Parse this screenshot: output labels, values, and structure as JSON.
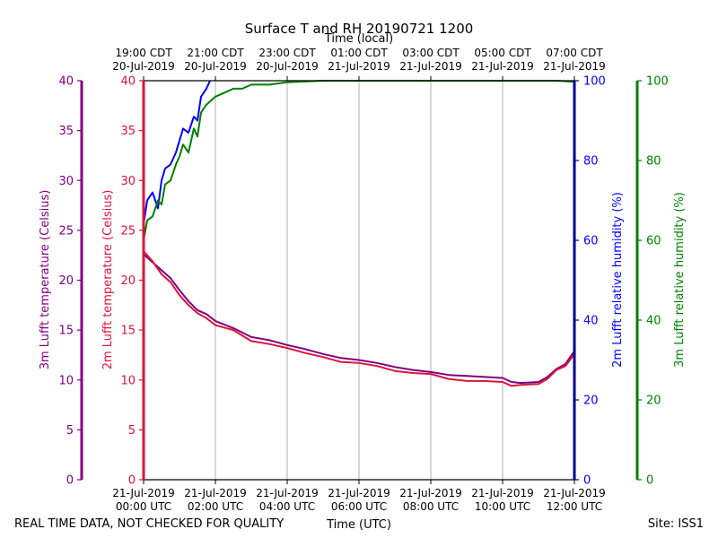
{
  "chart_data": {
    "type": "line",
    "title": "Surface T and RH 20190721 1200",
    "top_axis_title": "Time (local)",
    "top_ticks": [
      {
        "l1": "19:00 CDT",
        "l2": "20-Jul-2019",
        "x": 0
      },
      {
        "l1": "21:00 CDT",
        "l2": "20-Jul-2019",
        "x": 2
      },
      {
        "l1": "23:00 CDT",
        "l2": "20-Jul-2019",
        "x": 4
      },
      {
        "l1": "01:00 CDT",
        "l2": "21-Jul-2019",
        "x": 6
      },
      {
        "l1": "03:00 CDT",
        "l2": "21-Jul-2019",
        "x": 8
      },
      {
        "l1": "05:00 CDT",
        "l2": "21-Jul-2019",
        "x": 10
      },
      {
        "l1": "07:00 CDT",
        "l2": "21-Jul-2019",
        "x": 12
      }
    ],
    "bottom_axis_title": "Time (UTC)",
    "bottom_ticks": [
      {
        "l1": "21-Jul-2019",
        "l2": "00:00 UTC",
        "x": 0
      },
      {
        "l1": "21-Jul-2019",
        "l2": "02:00 UTC",
        "x": 2
      },
      {
        "l1": "21-Jul-2019",
        "l2": "04:00 UTC",
        "x": 4
      },
      {
        "l1": "21-Jul-2019",
        "l2": "06:00 UTC",
        "x": 6
      },
      {
        "l1": "21-Jul-2019",
        "l2": "08:00 UTC",
        "x": 8
      },
      {
        "l1": "21-Jul-2019",
        "l2": "10:00 UTC",
        "x": 10
      },
      {
        "l1": "21-Jul-2019",
        "l2": "12:00 UTC",
        "x": 12
      }
    ],
    "x_range_hours_utc": [
      0,
      12
    ],
    "grid": "vertical",
    "axes": {
      "left_outer": {
        "label": "3m Lufft temperature (Celsius)",
        "color": "#800080",
        "range": [
          0,
          40
        ],
        "ticks": [
          "0",
          "5",
          "10",
          "15",
          "20",
          "25",
          "30",
          "35",
          "40"
        ]
      },
      "left_inner": {
        "label": "2m Lufft temperature (Celsius)",
        "color": "#dc143c",
        "range": [
          0,
          40
        ],
        "ticks": [
          "0",
          "5",
          "10",
          "15",
          "20",
          "25",
          "30",
          "35",
          "40"
        ]
      },
      "right_inner": {
        "label": "2m Lufft relative humidity (%)",
        "color": "#0000ff",
        "axis_color": "#00008b",
        "range": [
          0,
          100
        ],
        "ticks": [
          "0",
          "20",
          "40",
          "60",
          "80",
          "100"
        ]
      },
      "right_outer": {
        "label": "3m Lufft relative humidity (%)",
        "color": "#008000",
        "range": [
          0,
          100
        ],
        "ticks": [
          "0",
          "20",
          "40",
          "60",
          "80",
          "100"
        ]
      }
    },
    "series": [
      {
        "name": "3m Lufft temperature",
        "axis": "left_outer",
        "color": "#800080",
        "x": [
          0,
          0.25,
          0.5,
          0.75,
          1,
          1.25,
          1.5,
          1.75,
          2,
          2.5,
          3,
          3.5,
          4,
          4.5,
          5,
          5.5,
          6,
          6.5,
          7,
          7.5,
          8,
          8.5,
          9,
          9.5,
          10,
          10.25,
          10.5,
          11,
          11.25,
          11.5,
          11.75,
          12
        ],
        "y": [
          22.6,
          21.8,
          21.0,
          20.2,
          19.0,
          17.9,
          17.0,
          16.6,
          15.9,
          15.2,
          14.3,
          14.0,
          13.5,
          13.1,
          12.6,
          12.2,
          12.0,
          11.7,
          11.3,
          11.0,
          10.8,
          10.5,
          10.4,
          10.3,
          10.2,
          9.8,
          9.7,
          9.8,
          10.3,
          11.1,
          11.6,
          12.9
        ]
      },
      {
        "name": "2m Lufft temperature",
        "axis": "left_inner",
        "color": "#dc143c",
        "x": [
          0,
          0.25,
          0.5,
          0.75,
          1,
          1.25,
          1.5,
          1.75,
          2,
          2.5,
          3,
          3.5,
          4,
          4.5,
          5,
          5.5,
          6,
          6.5,
          7,
          7.5,
          8,
          8.5,
          9,
          9.5,
          10,
          10.25,
          10.5,
          11,
          11.25,
          11.5,
          11.75,
          12
        ],
        "y": [
          22.9,
          21.9,
          20.6,
          19.8,
          18.5,
          17.5,
          16.7,
          16.2,
          15.5,
          15.0,
          13.9,
          13.6,
          13.2,
          12.7,
          12.3,
          11.8,
          11.7,
          11.4,
          10.9,
          10.7,
          10.6,
          10.1,
          9.9,
          9.9,
          9.8,
          9.4,
          9.5,
          9.6,
          10.1,
          11.0,
          11.4,
          12.6
        ]
      },
      {
        "name": "2m Lufft relative humidity",
        "axis": "right_inner",
        "color": "#0000ff",
        "x": [
          0,
          0.1,
          0.25,
          0.4,
          0.5,
          0.6,
          0.75,
          0.9,
          1,
          1.1,
          1.25,
          1.4,
          1.5,
          1.6,
          1.75,
          1.85
        ],
        "y": [
          64,
          70,
          72,
          68,
          75,
          78,
          79,
          82,
          85,
          88,
          87,
          91,
          90,
          96,
          98,
          100
        ]
      },
      {
        "name": "3m Lufft relative humidity",
        "axis": "right_outer",
        "color": "#008000",
        "x": [
          0,
          0.1,
          0.25,
          0.4,
          0.5,
          0.6,
          0.75,
          0.9,
          1,
          1.1,
          1.25,
          1.4,
          1.5,
          1.6,
          1.75,
          2,
          2.25,
          2.5,
          2.75,
          3,
          3.5,
          4,
          4.5,
          5,
          6,
          8,
          10,
          11.5,
          12
        ],
        "y": [
          60,
          65,
          66,
          70,
          69,
          74,
          75,
          79,
          81,
          84,
          82,
          88,
          86,
          92,
          94,
          96,
          97,
          98,
          98,
          99,
          99,
          99.6,
          99.8,
          100,
          100,
          100,
          100,
          100,
          99.7
        ]
      }
    ],
    "footer_left": "REAL TIME DATA, NOT CHECKED FOR QUALITY",
    "footer_right": "Site: ISS1"
  }
}
